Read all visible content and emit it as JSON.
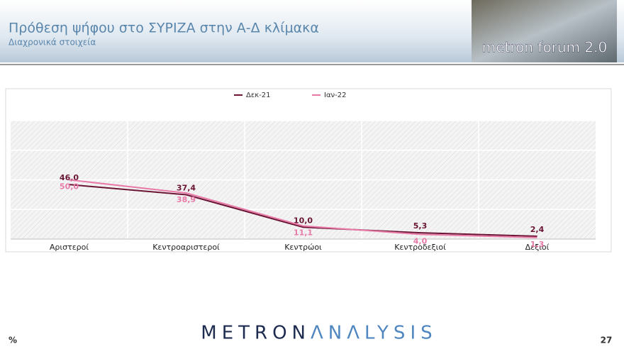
{
  "header": {
    "title": "Πρόθεση ψήφου στο ΣΥΡΙΖΑ στην Α-Δ κλίμακα",
    "subtitle": "Διαχρονικά στοιχεία",
    "logo": "metron forum 2.0"
  },
  "chart_data": {
    "type": "line",
    "categories": [
      "Αριστεροί",
      "Κεντροαριστεροί",
      "Κεντρώοι",
      "Κεντροδεξιοί",
      "Δεξιοί"
    ],
    "series": [
      {
        "name": "Δεκ-21",
        "color": "#6b1535",
        "values": [
          46.0,
          37.4,
          10.0,
          5.3,
          2.4
        ],
        "value_labels": [
          "46,0",
          "37,4",
          "10,0",
          "5,3",
          "2,4"
        ]
      },
      {
        "name": "Ιαν-22",
        "color": "#e87aa8",
        "values": [
          50.0,
          38.9,
          11.1,
          4.0,
          1.3
        ],
        "value_labels": [
          "50,0",
          "38,9",
          "11,1",
          "4,0",
          "1,3"
        ]
      }
    ],
    "ylim": [
      0,
      100
    ],
    "yticks": [
      0,
      25,
      50,
      75,
      100
    ],
    "grid": true,
    "legend": "top"
  },
  "footer": {
    "unit": "%",
    "brand_left": "METRON",
    "brand_right": "ΛNΛLYSIS",
    "page": "27"
  }
}
